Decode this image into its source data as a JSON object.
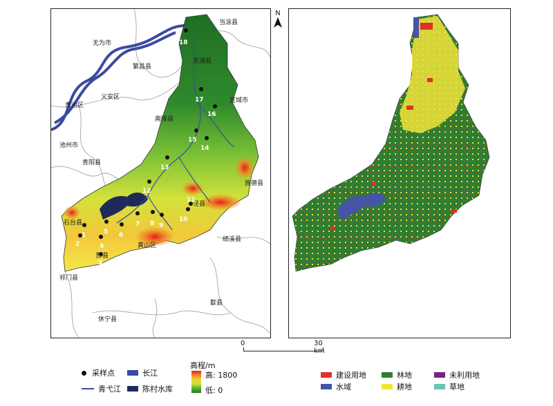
{
  "left_map": {
    "counties": [
      "无为市",
      "当涂县",
      "繁昌县",
      "义安区",
      "贵池区",
      "池州市",
      "青阳县",
      "石台县",
      "祁门县",
      "黟县",
      "黄山区",
      "泾县",
      "旌德县",
      "绩溪县",
      "歙县",
      "休宁县",
      "芜湖县",
      "宣城市",
      "南陵县"
    ],
    "elevation_gradient_colors": [
      "#1f7a2a",
      "#56b030",
      "#c7df3a",
      "#f2d235",
      "#f08a25",
      "#e02020"
    ],
    "sample_points": [
      "1",
      "2",
      "3",
      "4",
      "5",
      "6",
      "7",
      "8",
      "9",
      "10",
      "11",
      "12",
      "13",
      "14",
      "15",
      "16",
      "17",
      "18"
    ]
  },
  "right_map": {
    "landuse_colors": {
      "built": "#e0302a",
      "water": "#4654a8",
      "forest": "#2e7d32",
      "cropland": "#f1e43b",
      "unused": "#7a1f8a",
      "grass": "#6cc3b0"
    }
  },
  "north_label": "N",
  "scale": {
    "zero": "0",
    "end": "30 km"
  },
  "legend": {
    "sample": "采样点",
    "qingyi": "青弋江",
    "yangtze": "长江",
    "chencun": "陈村水库",
    "elev_title": "高程/m",
    "elev_high": "高: 1800",
    "elev_low": "低: 0",
    "built": "建设用地",
    "water": "水域",
    "forest": "林地",
    "cropland": "耕地",
    "unused": "未利用地",
    "grass": "草地"
  },
  "colors": {
    "yangtze": "#3b4aa0",
    "river": "#3b4aa0",
    "reservoir": "#1f2a5a"
  }
}
